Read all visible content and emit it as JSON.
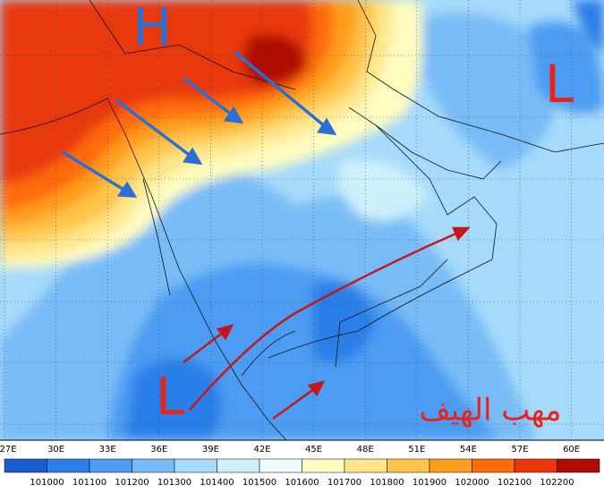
{
  "map": {
    "markers": [
      {
        "label": "H",
        "color": "#2a6fd6"
      },
      {
        "label": "L",
        "color": "#e8231a"
      },
      {
        "label": "L",
        "color": "#e8231a"
      }
    ],
    "annotation": "مهب الهيف",
    "lon_labels": [
      "27E",
      "30E",
      "33E",
      "36E",
      "39E",
      "42E",
      "45E",
      "48E",
      "51E",
      "54E",
      "57E",
      "60E"
    ],
    "colorbar": {
      "colors": [
        "#1a5fcf",
        "#2c7ee8",
        "#4b9cf2",
        "#78bcf7",
        "#a6dafa",
        "#cdf0fb",
        "#eefffd",
        "#fffcc0",
        "#ffe68a",
        "#ffc44c",
        "#ff9d1e",
        "#ff6a0a",
        "#e8380c",
        "#b00c06"
      ],
      "labels": [
        101000,
        101100,
        101200,
        101300,
        101400,
        101500,
        101600,
        101700,
        101800,
        101900,
        102000,
        102100,
        102200
      ]
    }
  }
}
